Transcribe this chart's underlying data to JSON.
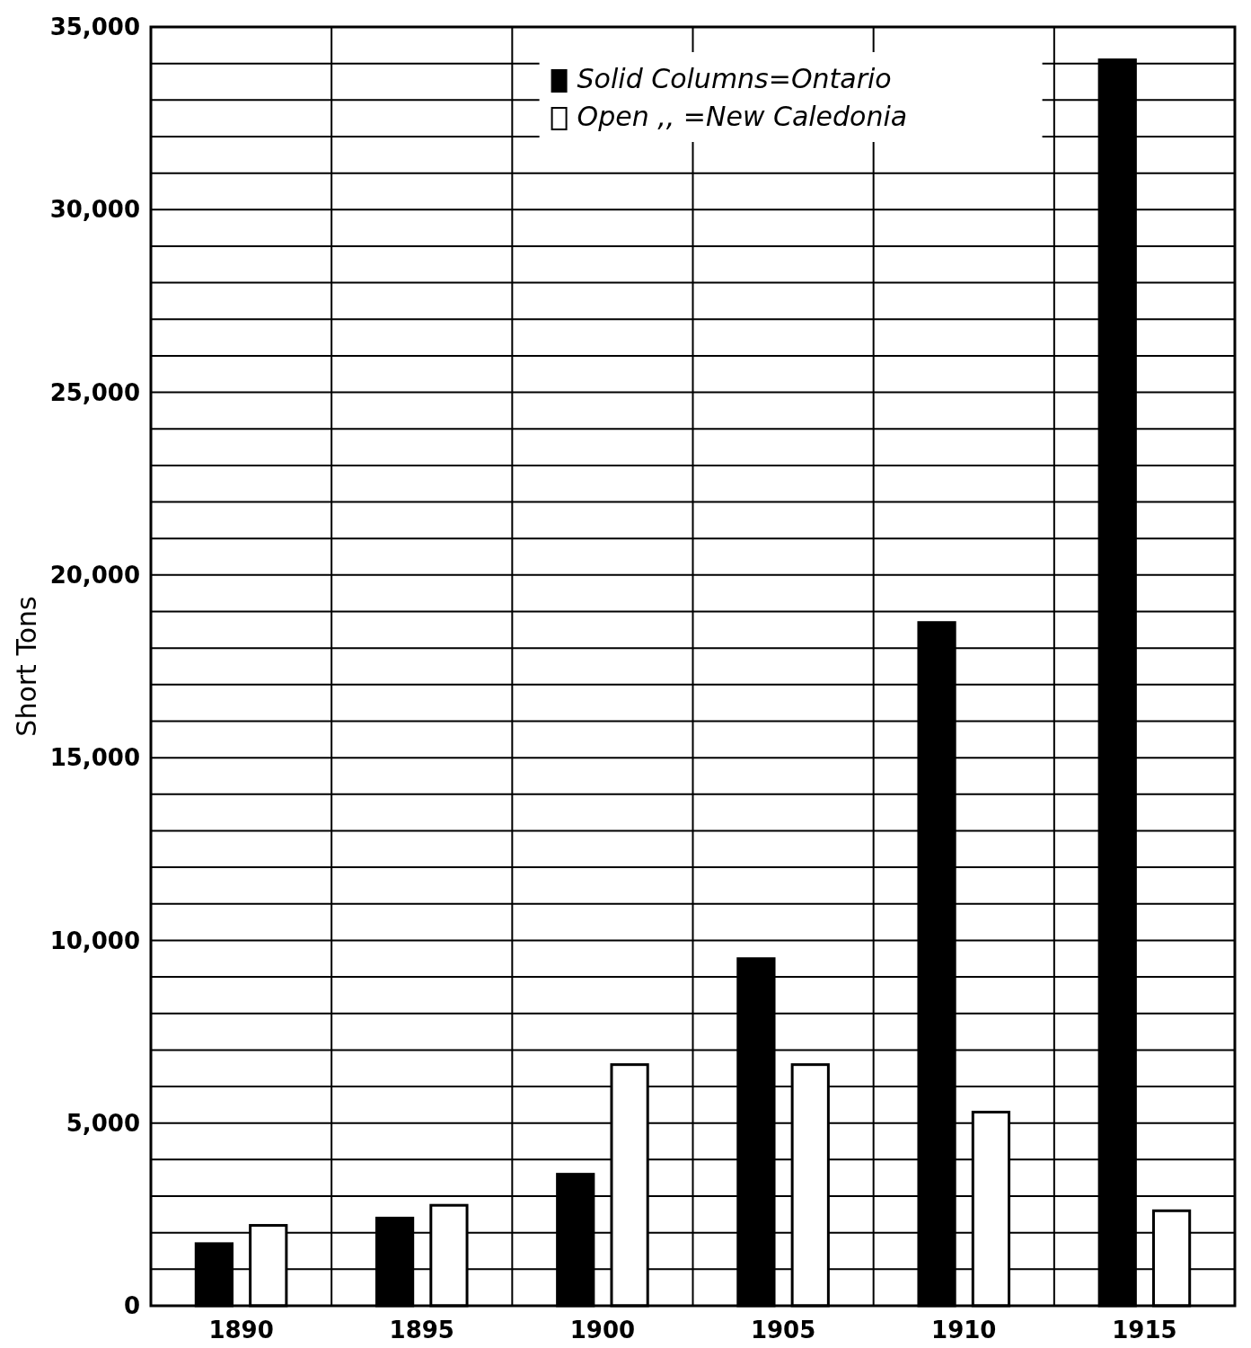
{
  "chart_data": {
    "type": "bar",
    "ylabel": "Short Tons",
    "categories": [
      "1890",
      "1895",
      "1900",
      "1905",
      "1910",
      "1915"
    ],
    "series": [
      {
        "name": "Solid Columns=Ontario",
        "color": "#000000",
        "values": [
          1700,
          2400,
          3600,
          9500,
          18700,
          34100
        ]
      },
      {
        "name": "Open    ,,    =New Caledonia",
        "color": "#ffffff",
        "values": [
          2200,
          2750,
          6600,
          6600,
          5300,
          2600
        ]
      }
    ],
    "ylim": [
      0,
      35000
    ],
    "yticks": [
      0,
      {
        "value": 1000,
        "label": null
      },
      {
        "value": 2000,
        "label": null
      },
      {
        "value": 3000,
        "label": null
      },
      {
        "value": 4000,
        "label": null
      },
      {
        "value": 5000,
        "label": "5,000"
      },
      {
        "value": 6000,
        "label": null
      },
      {
        "value": 7000,
        "label": null
      },
      {
        "value": 8000,
        "label": null
      },
      {
        "value": 9000,
        "label": null
      },
      {
        "value": 10000,
        "label": "10,000"
      },
      {
        "value": 11000,
        "label": null
      },
      {
        "value": 12000,
        "label": null
      },
      {
        "value": 13000,
        "label": null
      },
      {
        "value": 14000,
        "label": null
      },
      {
        "value": 15000,
        "label": "15,000"
      },
      {
        "value": 16000,
        "label": null
      },
      {
        "value": 17000,
        "label": null
      },
      {
        "value": 18000,
        "label": null
      },
      {
        "value": 19000,
        "label": null
      },
      {
        "value": 20000,
        "label": "20,000"
      },
      {
        "value": 21000,
        "label": null
      },
      {
        "value": 22000,
        "label": null
      },
      {
        "value": 23000,
        "label": null
      },
      {
        "value": 24000,
        "label": null
      },
      {
        "value": 25000,
        "label": "25,000"
      },
      {
        "value": 26000,
        "label": null
      },
      {
        "value": 27000,
        "label": null
      },
      {
        "value": 28000,
        "label": null
      },
      {
        "value": 29000,
        "label": null
      },
      {
        "value": 30000,
        "label": "30,000"
      },
      {
        "value": 31000,
        "label": null
      },
      {
        "value": 32000,
        "label": null
      },
      {
        "value": 33000,
        "label": null
      },
      {
        "value": 34000,
        "label": null
      },
      {
        "value": 35000,
        "label": "35,000"
      }
    ],
    "grid": true,
    "legend": "top right"
  }
}
